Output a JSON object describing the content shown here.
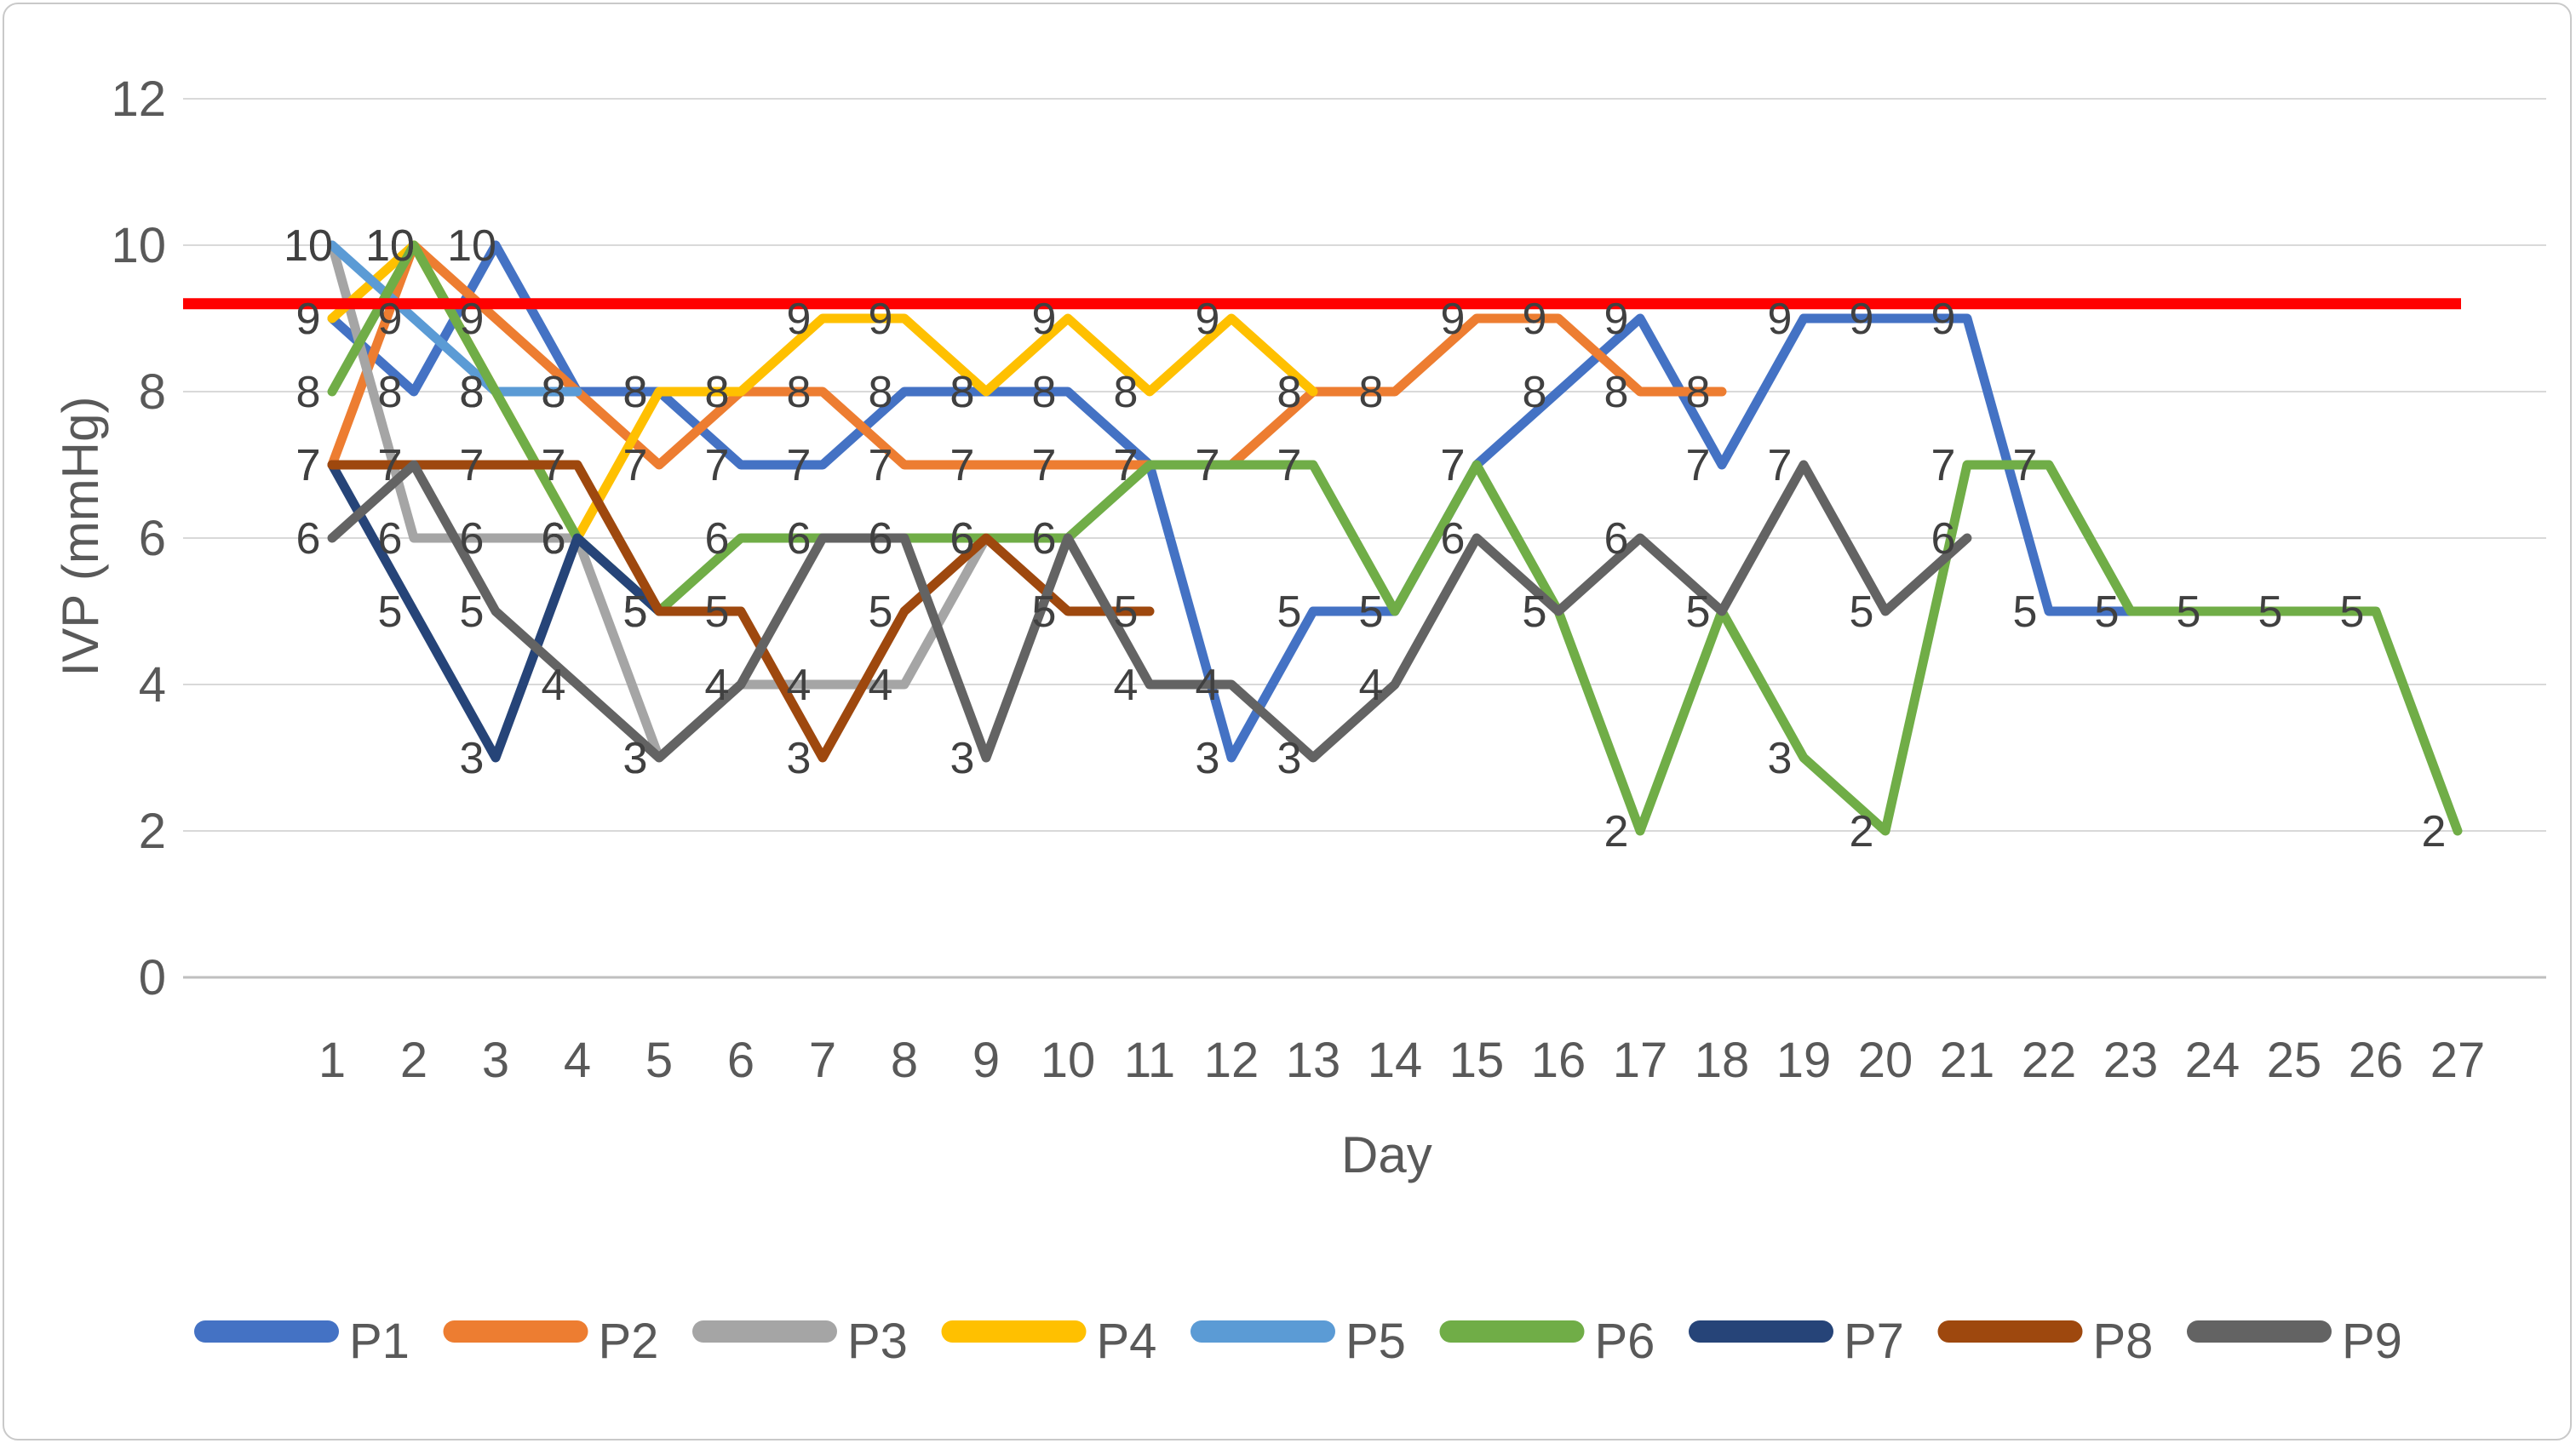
{
  "chart_data": {
    "type": "line",
    "title": "",
    "xlabel": "Day",
    "ylabel": "IVP (mmHg)",
    "days": [
      1,
      2,
      3,
      4,
      5,
      6,
      7,
      8,
      9,
      10,
      11,
      12,
      13,
      14,
      15,
      16,
      17,
      18,
      19,
      20,
      21,
      22,
      23,
      24,
      25,
      26,
      27
    ],
    "ylim": [
      0,
      12
    ],
    "yticks": [
      0,
      2,
      4,
      6,
      8,
      10,
      12
    ],
    "grid": true,
    "show_data_labels": true,
    "legend_position": "bottom",
    "reference_line": {
      "value": 9.2,
      "color": "#FF0000"
    },
    "series": [
      {
        "name": "P1",
        "color": "#4472C4",
        "values": [
          9,
          8,
          10,
          8,
          8,
          7,
          7,
          8,
          8,
          8,
          7,
          3,
          5,
          5,
          7,
          8,
          9,
          7,
          9,
          9,
          9,
          5,
          5
        ]
      },
      {
        "name": "P2",
        "color": "#ED7D31",
        "values": [
          7,
          10,
          9,
          8,
          7,
          8,
          8,
          7,
          7,
          7,
          7,
          7,
          8,
          8,
          9,
          9,
          8,
          8
        ]
      },
      {
        "name": "P3",
        "color": "#A5A5A5",
        "values": [
          10,
          6,
          6,
          6,
          3,
          4,
          4,
          4,
          6
        ]
      },
      {
        "name": "P4",
        "color": "#FFC000",
        "values": [
          9,
          10,
          8,
          6,
          8,
          8,
          9,
          9,
          8,
          9,
          8,
          9,
          8
        ]
      },
      {
        "name": "P5",
        "color": "#5B9BD5",
        "values": [
          10,
          9,
          8,
          8
        ]
      },
      {
        "name": "P6",
        "color": "#70AD47",
        "values": [
          8,
          10,
          8,
          6,
          5,
          6,
          6,
          6,
          6,
          6,
          7,
          7,
          7,
          5,
          7,
          5,
          2,
          5,
          3,
          2,
          7,
          7,
          5,
          5,
          5,
          5,
          2
        ]
      },
      {
        "name": "P7",
        "color": "#264478",
        "values": [
          7,
          5,
          3,
          6,
          5
        ]
      },
      {
        "name": "P8",
        "color": "#9E480E",
        "values": [
          7,
          7,
          7,
          7,
          5,
          5,
          3,
          5,
          6,
          5,
          5
        ]
      },
      {
        "name": "P9",
        "color": "#636363",
        "values": [
          6,
          7,
          5,
          4,
          3,
          4,
          6,
          6,
          3,
          6,
          4,
          4,
          3,
          4,
          6,
          5,
          6,
          5,
          7,
          5,
          6
        ]
      }
    ],
    "axis_colors": {
      "tick_text": "#595959",
      "gridline": "#D9D9D9",
      "axis_line": "#BFBFBF",
      "data_label": "#404040"
    }
  }
}
